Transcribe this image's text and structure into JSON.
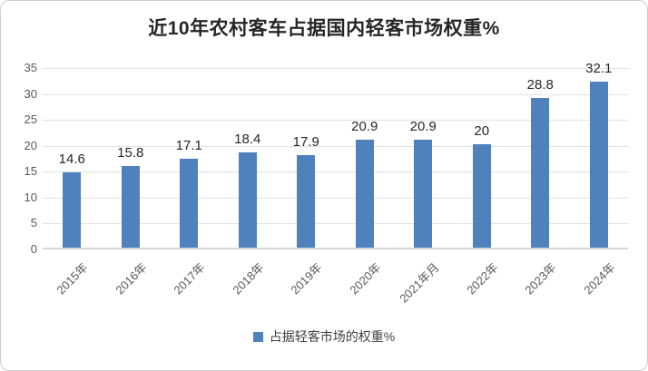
{
  "chart": {
    "title": "近10年农村客车占据国内轻客市场权重%",
    "legend_label": "占据轻客市场的权重%"
  },
  "chart_data": {
    "type": "bar",
    "title": "近10年农村客车占据国内轻客市场权重%",
    "categories": [
      "2015年",
      "2016年",
      "2017年",
      "2018年",
      "2019年",
      "2020年",
      "2021年月",
      "2022年",
      "2023年",
      "2024年"
    ],
    "values": [
      14.6,
      15.8,
      17.1,
      18.4,
      17.9,
      20.9,
      20.9,
      20,
      28.8,
      32.1
    ],
    "data_labels": [
      "14.6",
      "15.8",
      "17.1",
      "18.4",
      "17.9",
      "20.9",
      "20.9",
      "20",
      "28.8",
      "32.1"
    ],
    "legend": [
      "占据轻客市场的权重%"
    ],
    "legend_position": "bottom",
    "xlabel": "",
    "ylabel": "",
    "ylim": [
      0,
      35
    ],
    "yticks": [
      0,
      5,
      10,
      15,
      20,
      25,
      30,
      35
    ],
    "grid": true,
    "bar_color": "#4F81BD",
    "gridline_color": "#e2e2e2",
    "axis_text_color": "#595959",
    "label_text_color": "#262626"
  }
}
